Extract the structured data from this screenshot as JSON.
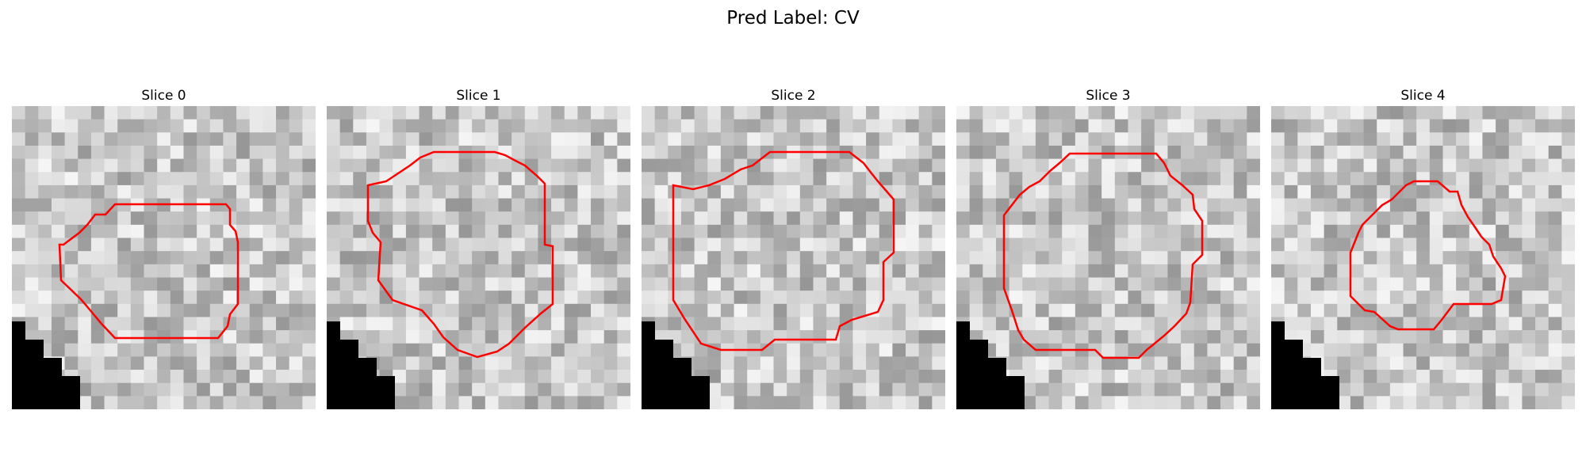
{
  "figure": {
    "title": "Pred Label: CV",
    "panels": [
      {
        "title": "Slice 0",
        "image": "grayscale-microscopy-patch",
        "contour_color": "#ff0000"
      },
      {
        "title": "Slice 1",
        "image": "grayscale-microscopy-patch",
        "contour_color": "#ff0000"
      },
      {
        "title": "Slice 2",
        "image": "grayscale-microscopy-patch",
        "contour_color": "#ff0000"
      },
      {
        "title": "Slice 3",
        "image": "grayscale-microscopy-patch",
        "contour_color": "#ff0000"
      },
      {
        "title": "Slice 4",
        "image": "grayscale-microscopy-patch",
        "contour_color": "#ff0000"
      }
    ]
  }
}
